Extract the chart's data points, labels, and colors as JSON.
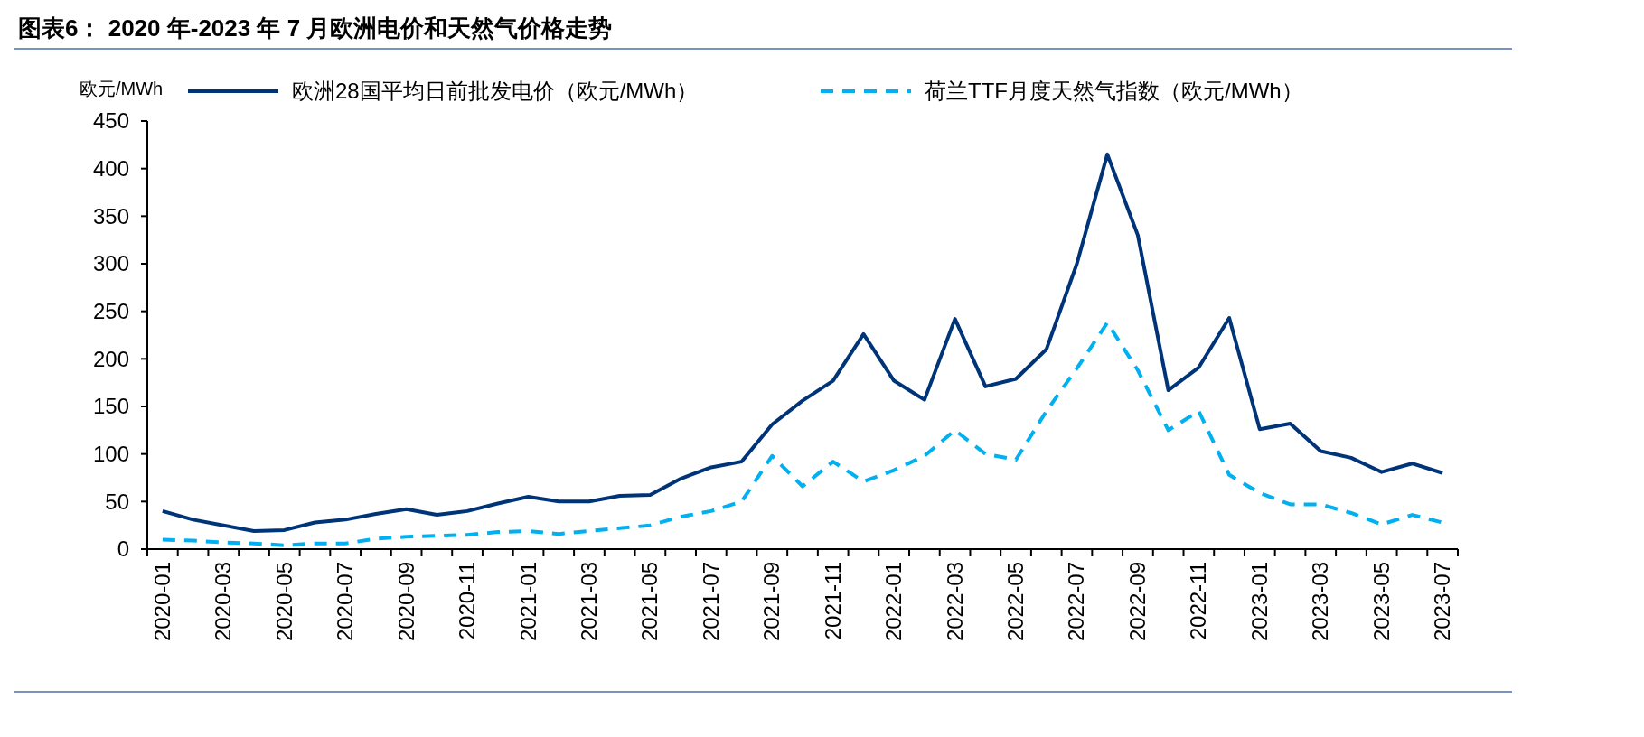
{
  "chart_data": {
    "type": "line",
    "title": "图表6：  2020 年-2023 年 7 月欧洲电价和天然气价格走势",
    "ylabel": "欧元/MWh",
    "categories": [
      "2020-01",
      null,
      "2020-03",
      null,
      "2020-05",
      null,
      "2020-07",
      null,
      "2020-09",
      null,
      "2020-11",
      null,
      "2021-01",
      null,
      "2021-03",
      null,
      "2021-05",
      null,
      "2021-07",
      null,
      "2021-09",
      null,
      "2021-11",
      null,
      "2022-01",
      null,
      "2022-03",
      null,
      "2022-05",
      null,
      "2022-07",
      null,
      "2022-09",
      null,
      "2022-11",
      null,
      "2023-01",
      null,
      "2023-03",
      null,
      "2023-05",
      null,
      "2023-07"
    ],
    "series": [
      {
        "name": "欧洲28国平均日前批发电价（欧元/MWh）",
        "color": "#003478",
        "line_style": "solid",
        "values": [
          40,
          31,
          25,
          19,
          20,
          28,
          31,
          37,
          42,
          36,
          40,
          48,
          55,
          50,
          50,
          56,
          57,
          74,
          86,
          92,
          131,
          156,
          177,
          226,
          177,
          157,
          242,
          171,
          179,
          210,
          300,
          415,
          330,
          167,
          191,
          243,
          126,
          132,
          103,
          96,
          81,
          90,
          80
        ]
      },
      {
        "name": "荷兰TTF月度天然气指数（欧元/MWh）",
        "color": "#00b0f0",
        "line_style": "dashed",
        "values": [
          10,
          9,
          7,
          6,
          4,
          6,
          6,
          11,
          13,
          14,
          15,
          18,
          19,
          16,
          19,
          22,
          25,
          34,
          40,
          50,
          98,
          66,
          92,
          71,
          83,
          98,
          125,
          100,
          94,
          145,
          190,
          238,
          188,
          125,
          145,
          78,
          59,
          47,
          47,
          38,
          26,
          36,
          28
        ]
      }
    ],
    "ylim": [
      0,
      450
    ],
    "yticks": [
      0,
      50,
      100,
      150,
      200,
      250,
      300,
      350,
      400,
      450
    ],
    "legend": "top",
    "grid": false,
    "marker": "none"
  }
}
